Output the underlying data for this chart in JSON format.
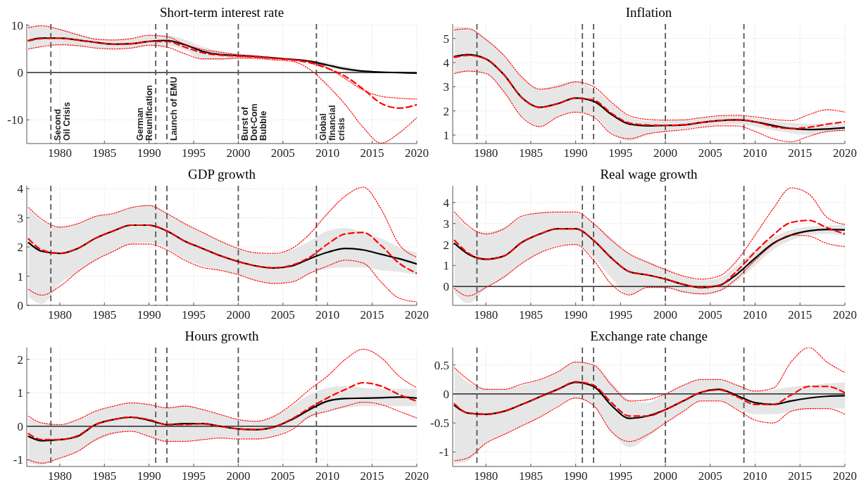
{
  "chart_data": [
    {
      "type": "line",
      "title": "Short-term interest rate",
      "x": [
        1976.5,
        1978,
        1980,
        1982,
        1984,
        1986,
        1988,
        1990,
        1992,
        1994,
        1996,
        1998,
        2000,
        2002,
        2004,
        2006,
        2008,
        2010,
        2012,
        2014,
        2016,
        2018,
        2020
      ],
      "xlim": [
        1976.3,
        2020
      ],
      "xticks": [
        1980,
        1985,
        1990,
        1995,
        2000,
        2005,
        2010,
        2015,
        2020
      ],
      "ylim": [
        -15,
        10.3
      ],
      "yticks": [
        -10,
        0,
        10
      ],
      "grid": true,
      "series": [
        {
          "color": "#000000",
          "line_style": "solid",
          "values": [
            6.8,
            7.3,
            7.3,
            6.9,
            6.4,
            6.0,
            6.1,
            6.6,
            6.8,
            5.9,
            4.5,
            3.8,
            3.6,
            3.4,
            3.1,
            2.8,
            2.4,
            1.6,
            0.8,
            0.3,
            0.1,
            0,
            -0.1
          ],
          "upper": [
            9.8,
            9.8,
            9.3,
            8.3,
            7.2,
            7.0,
            7.2,
            7.8,
            7.9,
            7.0,
            5.5,
            4.5,
            4.0,
            3.7,
            3.3,
            3.0,
            2.7,
            2.1,
            1.3,
            0.6,
            0.3,
            0.2,
            0.1
          ],
          "lower": [
            5.0,
            5.5,
            5.8,
            5.6,
            5.2,
            5.0,
            5.1,
            5.6,
            5.7,
            4.8,
            2.8,
            2.6,
            2.9,
            3.0,
            2.9,
            2.6,
            2.2,
            1.2,
            0.3,
            0,
            -0.1,
            -0.2,
            -0.3
          ]
        },
        {
          "color": "#ff0000",
          "line_style": "dashed",
          "values": [
            6.7,
            7.2,
            7.3,
            6.9,
            6.4,
            6.0,
            6.1,
            6.6,
            6.6,
            5.4,
            4.2,
            3.7,
            3.5,
            3.3,
            3.0,
            2.7,
            2.1,
            0.9,
            -0.8,
            -3.5,
            -6.5,
            -7.5,
            -6.8
          ]
        },
        {
          "color": "#ff0000",
          "line_style": "dotted",
          "values": [
            9.5,
            9.9,
            9.1,
            8.0,
            7.1,
            6.9,
            7.2,
            7.9,
            7.6,
            6.0,
            4.9,
            4.3,
            3.8,
            3.5,
            3.1,
            2.8,
            2.3,
            1.0,
            -1.3,
            -3.7,
            -5.0,
            -5.4,
            -5.6
          ]
        },
        {
          "color": "#ff0000",
          "line_style": "dotted",
          "values": [
            5.0,
            5.5,
            5.9,
            5.7,
            5.2,
            5.0,
            5.2,
            5.8,
            5.4,
            4.0,
            2.9,
            2.9,
            3.1,
            3.0,
            2.7,
            2.4,
            0.7,
            -2.7,
            -6.8,
            -11.6,
            -14.9,
            -12.8,
            -9.5
          ]
        }
      ],
      "ref_lines": [
        {
          "axis": "y",
          "value": 0,
          "color": "#000000",
          "line_style": "solid"
        },
        {
          "axis": "x",
          "value": 1979,
          "label": "Second\nOil Crisis",
          "color": "#555555",
          "line_style": "dashed"
        },
        {
          "axis": "x",
          "value": 1990.75,
          "label": "German\nReunification",
          "color": "#555555",
          "line_style": "dashed"
        },
        {
          "axis": "x",
          "value": 1992,
          "label": "Launch of EMU",
          "color": "#555555",
          "line_style": "dashed"
        },
        {
          "axis": "x",
          "value": 2000,
          "label": "Burst of\nDot-Com\nBubble",
          "color": "#555555",
          "line_style": "dashed"
        },
        {
          "axis": "x",
          "value": 2008.75,
          "label": "Global\nfinancial\ncrisis",
          "color": "#555555",
          "line_style": "dashed"
        }
      ]
    },
    {
      "type": "line",
      "title": "Inflation",
      "x": [
        1976.5,
        1978,
        1980,
        1982,
        1984,
        1986,
        1988,
        1990,
        1992,
        1994,
        1996,
        1998,
        2000,
        2002,
        2004,
        2006,
        2008,
        2010,
        2012,
        2014,
        2016,
        2018,
        2020
      ],
      "xlim": [
        1976.3,
        2020
      ],
      "xticks": [
        1980,
        1985,
        1990,
        1995,
        2000,
        2005,
        2010,
        2015,
        2020
      ],
      "ylim": [
        0.65,
        5.6
      ],
      "yticks": [
        1,
        2,
        3,
        4,
        5
      ],
      "grid": true,
      "series": [
        {
          "color": "#000000",
          "line_style": "solid",
          "values": [
            4.25,
            4.33,
            4.15,
            3.5,
            2.55,
            2.15,
            2.3,
            2.53,
            2.4,
            1.85,
            1.45,
            1.38,
            1.4,
            1.42,
            1.52,
            1.6,
            1.63,
            1.55,
            1.4,
            1.27,
            1.23,
            1.25,
            1.3
          ],
          "upper": [
            5.5,
            5.45,
            5.0,
            4.3,
            3.4,
            2.9,
            3.1,
            3.25,
            2.9,
            2.3,
            1.75,
            1.6,
            1.6,
            1.62,
            1.7,
            1.78,
            1.8,
            1.7,
            1.6,
            1.5,
            1.47,
            1.47,
            1.45
          ],
          "lower": [
            3.5,
            3.6,
            3.55,
            2.8,
            1.8,
            1.35,
            1.75,
            1.95,
            1.8,
            1.1,
            0.75,
            1.0,
            1.15,
            1.25,
            1.35,
            1.42,
            1.45,
            1.35,
            1.2,
            1.08,
            1.02,
            1.1,
            1.15
          ]
        },
        {
          "color": "#ff0000",
          "line_style": "dashed",
          "values": [
            4.22,
            4.3,
            4.15,
            3.5,
            2.55,
            2.15,
            2.3,
            2.53,
            2.45,
            1.9,
            1.5,
            1.42,
            1.4,
            1.42,
            1.52,
            1.6,
            1.63,
            1.55,
            1.35,
            1.27,
            1.32,
            1.45,
            1.55
          ]
        },
        {
          "color": "#ff0000",
          "line_style": "dotted",
          "values": [
            5.35,
            5.4,
            4.95,
            4.3,
            3.4,
            2.9,
            3.0,
            3.2,
            3.0,
            2.35,
            1.8,
            1.65,
            1.62,
            1.63,
            1.72,
            1.8,
            1.82,
            1.75,
            1.65,
            1.6,
            1.85,
            2.05,
            1.95
          ]
        },
        {
          "color": "#ff0000",
          "line_style": "dotted",
          "values": [
            3.55,
            3.65,
            3.55,
            2.8,
            1.75,
            1.35,
            1.75,
            1.95,
            1.75,
            1.05,
            0.85,
            1.05,
            1.15,
            1.22,
            1.32,
            1.38,
            1.38,
            1.15,
            0.85,
            0.72,
            0.95,
            1.15,
            1.2
          ]
        }
      ],
      "ref_lines": [
        {
          "axis": "x",
          "value": 1979,
          "color": "#555555",
          "line_style": "dashed"
        },
        {
          "axis": "x",
          "value": 1990.75,
          "color": "#555555",
          "line_style": "dashed"
        },
        {
          "axis": "x",
          "value": 1992,
          "color": "#555555",
          "line_style": "dashed"
        },
        {
          "axis": "x",
          "value": 2000,
          "color": "#555555",
          "line_style": "dashed"
        },
        {
          "axis": "x",
          "value": 2008.75,
          "color": "#555555",
          "line_style": "dashed"
        }
      ]
    },
    {
      "type": "line",
      "title": "GDP growth",
      "x": [
        1976.5,
        1978,
        1980,
        1982,
        1984,
        1986,
        1988,
        1990,
        1992,
        1994,
        1996,
        1998,
        2000,
        2002,
        2004,
        2006,
        2008,
        2010,
        2012,
        2014,
        2016,
        2018,
        2020
      ],
      "xlim": [
        1976.3,
        2020
      ],
      "xticks": [
        1980,
        1985,
        1990,
        1995,
        2000,
        2005,
        2010,
        2015,
        2020
      ],
      "ylim": [
        0,
        4.1
      ],
      "yticks": [
        0,
        1,
        2,
        3,
        4
      ],
      "grid": true,
      "series": [
        {
          "color": "#000000",
          "line_style": "solid",
          "values": [
            2.15,
            1.85,
            1.78,
            1.95,
            2.3,
            2.55,
            2.75,
            2.75,
            2.55,
            2.2,
            1.95,
            1.7,
            1.5,
            1.35,
            1.28,
            1.35,
            1.6,
            1.82,
            1.95,
            1.9,
            1.75,
            1.6,
            1.42
          ],
          "upper": [
            3.3,
            2.9,
            2.7,
            2.8,
            3.05,
            3.15,
            3.35,
            3.45,
            3.15,
            2.8,
            2.5,
            2.2,
            1.95,
            1.8,
            1.75,
            1.9,
            2.2,
            2.55,
            2.65,
            2.5,
            2.3,
            2.0,
            1.8
          ],
          "lower": [
            0.3,
            0.05,
            0.75,
            1.15,
            1.55,
            1.85,
            2.1,
            2.15,
            1.95,
            1.6,
            1.35,
            1.2,
            1.05,
            0.85,
            0.75,
            0.8,
            1.1,
            1.25,
            1.3,
            1.3,
            1.2,
            1.15,
            1.05
          ]
        },
        {
          "color": "#ff0000",
          "line_style": "dashed",
          "values": [
            2.28,
            1.9,
            1.78,
            1.95,
            2.3,
            2.55,
            2.75,
            2.75,
            2.55,
            2.2,
            1.95,
            1.7,
            1.5,
            1.35,
            1.28,
            1.38,
            1.65,
            2.1,
            2.45,
            2.5,
            2.05,
            1.45,
            1.1
          ]
        },
        {
          "color": "#ff0000",
          "line_style": "dotted",
          "values": [
            3.35,
            2.95,
            2.68,
            2.8,
            3.05,
            3.15,
            3.35,
            3.42,
            3.15,
            2.8,
            2.5,
            2.2,
            1.95,
            1.8,
            1.78,
            1.95,
            2.45,
            3.15,
            3.75,
            4.05,
            3.3,
            2.1,
            1.65
          ]
        },
        {
          "color": "#ff0000",
          "line_style": "dotted",
          "values": [
            0.55,
            0.35,
            0.65,
            1.15,
            1.55,
            1.85,
            2.1,
            2.1,
            1.9,
            1.55,
            1.3,
            1.2,
            1.05,
            0.85,
            0.75,
            0.8,
            1.1,
            1.35,
            1.55,
            1.45,
            0.8,
            0.25,
            0.12
          ]
        }
      ],
      "ref_lines": [
        {
          "axis": "x",
          "value": 1979,
          "color": "#555555",
          "line_style": "dashed"
        },
        {
          "axis": "x",
          "value": 1990.75,
          "color": "#555555",
          "line_style": "dashed"
        },
        {
          "axis": "x",
          "value": 1992,
          "color": "#555555",
          "line_style": "dashed"
        },
        {
          "axis": "x",
          "value": 2000,
          "color": "#555555",
          "line_style": "dashed"
        },
        {
          "axis": "x",
          "value": 2008.75,
          "color": "#555555",
          "line_style": "dashed"
        }
      ]
    },
    {
      "type": "line",
      "title": "Real wage growth",
      "x": [
        1976.5,
        1978,
        1980,
        1982,
        1984,
        1986,
        1988,
        1990,
        1992,
        1994,
        1996,
        1998,
        2000,
        2002,
        2004,
        2006,
        2008,
        2010,
        2012,
        2014,
        2016,
        2018,
        2020
      ],
      "xlim": [
        1976.3,
        2020
      ],
      "xticks": [
        1980,
        1985,
        1990,
        1995,
        2000,
        2005,
        2010,
        2015,
        2020
      ],
      "ylim": [
        -0.9,
        4.8
      ],
      "yticks": [
        0,
        1,
        2,
        3,
        4
      ],
      "grid": true,
      "series": [
        {
          "color": "#000000",
          "line_style": "solid",
          "values": [
            2.05,
            1.55,
            1.3,
            1.45,
            2.1,
            2.5,
            2.75,
            2.75,
            2.2,
            1.35,
            0.7,
            0.55,
            0.35,
            0.1,
            -0.05,
            0.05,
            0.6,
            1.35,
            2.05,
            2.45,
            2.65,
            2.72,
            2.7
          ],
          "upper": [
            3.5,
            2.8,
            2.6,
            2.8,
            3.3,
            3.55,
            3.55,
            3.5,
            3.0,
            2.3,
            1.55,
            1.2,
            0.85,
            0.5,
            0.3,
            0.4,
            1.0,
            1.75,
            2.35,
            2.7,
            2.85,
            2.9,
            2.95
          ],
          "lower": [
            -0.3,
            -0.8,
            -0.1,
            0.4,
            1.1,
            1.6,
            1.95,
            2.0,
            1.4,
            0.4,
            -0.4,
            -0.05,
            -0.05,
            -0.3,
            -0.4,
            -0.25,
            0.25,
            1.0,
            1.75,
            2.2,
            2.45,
            2.5,
            2.4
          ]
        },
        {
          "color": "#ff0000",
          "line_style": "dashed",
          "values": [
            2.2,
            1.6,
            1.3,
            1.45,
            2.1,
            2.5,
            2.75,
            2.75,
            2.2,
            1.35,
            0.7,
            0.55,
            0.35,
            0.1,
            -0.05,
            0.05,
            0.75,
            1.65,
            2.45,
            3.05,
            3.15,
            2.8,
            2.5
          ]
        },
        {
          "color": "#ff0000",
          "line_style": "dotted",
          "values": [
            3.55,
            2.9,
            2.5,
            2.75,
            3.35,
            3.5,
            3.55,
            3.55,
            3.0,
            2.2,
            1.55,
            1.15,
            0.8,
            0.5,
            0.35,
            0.5,
            1.25,
            2.45,
            3.7,
            4.7,
            4.4,
            3.3,
            2.95
          ]
        },
        {
          "color": "#ff0000",
          "line_style": "dotted",
          "values": [
            -0.1,
            -0.45,
            -0.05,
            0.45,
            1.1,
            1.6,
            1.9,
            2.0,
            1.25,
            0.1,
            -0.4,
            -0.05,
            -0.05,
            -0.25,
            -0.35,
            -0.2,
            0.4,
            1.25,
            2.0,
            2.45,
            2.4,
            2.05,
            1.9
          ]
        }
      ],
      "ref_lines": [
        {
          "axis": "y",
          "value": 0,
          "color": "#000000",
          "line_style": "solid"
        },
        {
          "axis": "x",
          "value": 1979,
          "color": "#555555",
          "line_style": "dashed"
        },
        {
          "axis": "x",
          "value": 1990.75,
          "color": "#555555",
          "line_style": "dashed"
        },
        {
          "axis": "x",
          "value": 1992,
          "color": "#555555",
          "line_style": "dashed"
        },
        {
          "axis": "x",
          "value": 2000,
          "color": "#555555",
          "line_style": "dashed"
        },
        {
          "axis": "x",
          "value": 2008.75,
          "color": "#555555",
          "line_style": "dashed"
        }
      ]
    },
    {
      "type": "line",
      "title": "Hours growth",
      "x": [
        1976.5,
        1978,
        1980,
        1982,
        1984,
        1986,
        1988,
        1990,
        1992,
        1994,
        1996,
        1998,
        2000,
        2002,
        2004,
        2006,
        2008,
        2010,
        2012,
        2014,
        2016,
        2018,
        2020
      ],
      "xlim": [
        1976.3,
        2020
      ],
      "xticks": [
        1980,
        1985,
        1990,
        1995,
        2000,
        2005,
        2010,
        2015,
        2020
      ],
      "ylim": [
        -1.2,
        2.35
      ],
      "yticks": [
        -1,
        0,
        1,
        2
      ],
      "grid": true,
      "series": [
        {
          "color": "#000000",
          "line_style": "solid",
          "values": [
            -0.3,
            -0.43,
            -0.4,
            -0.3,
            0.05,
            0.2,
            0.27,
            0.18,
            0.05,
            0.08,
            0.08,
            0,
            -0.08,
            -0.1,
            -0.02,
            0.2,
            0.5,
            0.75,
            0.83,
            0.84,
            0.85,
            0.87,
            0.84
          ],
          "upper": [
            0.25,
            0.1,
            0.05,
            0.2,
            0.45,
            0.6,
            0.7,
            0.65,
            0.55,
            0.65,
            0.5,
            0.35,
            0.2,
            0.15,
            0.3,
            0.6,
            0.95,
            1.15,
            1.2,
            1.15,
            1.12,
            1.12,
            1.12
          ],
          "lower": [
            -1.1,
            -1.15,
            -0.95,
            -0.75,
            -0.45,
            -0.25,
            -0.15,
            -0.3,
            -0.45,
            -0.45,
            -0.4,
            -0.35,
            -0.35,
            -0.38,
            -0.3,
            -0.05,
            0.25,
            0.45,
            0.55,
            0.6,
            0.6,
            0.6,
            0.6
          ]
        },
        {
          "color": "#ff0000",
          "line_style": "dashed",
          "values": [
            -0.22,
            -0.4,
            -0.4,
            -0.28,
            0.05,
            0.2,
            0.27,
            0.2,
            0.05,
            0.05,
            0.08,
            0,
            -0.08,
            -0.1,
            -0.02,
            0.22,
            0.55,
            0.85,
            1.1,
            1.3,
            1.2,
            0.95,
            0.75
          ]
        },
        {
          "color": "#ff0000",
          "line_style": "dotted",
          "values": [
            0.3,
            0.1,
            0.05,
            0.2,
            0.45,
            0.6,
            0.7,
            0.65,
            0.55,
            0.6,
            0.5,
            0.35,
            0.2,
            0.15,
            0.3,
            0.65,
            1.1,
            1.5,
            2.0,
            2.3,
            2.05,
            1.5,
            1.15
          ]
        },
        {
          "color": "#ff0000",
          "line_style": "dotted",
          "values": [
            -1.0,
            -1.1,
            -0.95,
            -0.75,
            -0.4,
            -0.2,
            -0.15,
            -0.3,
            -0.45,
            -0.45,
            -0.4,
            -0.35,
            -0.38,
            -0.38,
            -0.3,
            -0.1,
            0.3,
            0.45,
            0.6,
            0.72,
            0.65,
            0.45,
            0.25
          ]
        }
      ],
      "ref_lines": [
        {
          "axis": "y",
          "value": 0,
          "color": "#000000",
          "line_style": "solid"
        },
        {
          "axis": "x",
          "value": 1979,
          "color": "#555555",
          "line_style": "dashed"
        },
        {
          "axis": "x",
          "value": 1990.75,
          "color": "#555555",
          "line_style": "dashed"
        },
        {
          "axis": "x",
          "value": 1992,
          "color": "#555555",
          "line_style": "dashed"
        },
        {
          "axis": "x",
          "value": 2000,
          "color": "#555555",
          "line_style": "dashed"
        },
        {
          "axis": "x",
          "value": 2008.75,
          "color": "#555555",
          "line_style": "dashed"
        }
      ]
    },
    {
      "type": "line",
      "title": "Exchange rate change",
      "x": [
        1976.5,
        1978,
        1980,
        1982,
        1984,
        1986,
        1988,
        1990,
        1992,
        1994,
        1996,
        1998,
        2000,
        2002,
        2004,
        2006,
        2008,
        2010,
        2012,
        2014,
        2016,
        2018,
        2020
      ],
      "xlim": [
        1976.3,
        2020
      ],
      "xticks": [
        1980,
        1985,
        1990,
        1995,
        2000,
        2005,
        2010,
        2015,
        2020
      ],
      "ylim": [
        -1.25,
        0.8
      ],
      "yticks": [
        -1,
        -0.5,
        0,
        0.5
      ],
      "grid": true,
      "series": [
        {
          "color": "#000000",
          "line_style": "solid",
          "values": [
            -0.2,
            -0.33,
            -0.35,
            -0.3,
            -0.18,
            -0.05,
            0.08,
            0.2,
            0.13,
            -0.2,
            -0.42,
            -0.38,
            -0.27,
            -0.12,
            0.03,
            0.08,
            -0.03,
            -0.15,
            -0.18,
            -0.12,
            -0.07,
            -0.04,
            -0.03
          ],
          "upper": [
            0.45,
            0.2,
            0.1,
            0.08,
            0.15,
            0.25,
            0.38,
            0.55,
            0.5,
            0.2,
            -0.1,
            -0.15,
            0.0,
            0.15,
            0.25,
            0.25,
            0.15,
            0.05,
            0.07,
            0.12,
            0.15,
            0.18,
            0.2
          ],
          "lower": [
            -1.2,
            -1.15,
            -0.85,
            -0.7,
            -0.55,
            -0.4,
            -0.2,
            -0.08,
            -0.2,
            -0.65,
            -0.92,
            -0.75,
            -0.5,
            -0.3,
            -0.12,
            -0.12,
            -0.25,
            -0.35,
            -0.35,
            -0.3,
            -0.27,
            -0.25,
            -0.25
          ]
        },
        {
          "color": "#ff0000",
          "line_style": "dashed",
          "values": [
            -0.17,
            -0.33,
            -0.35,
            -0.3,
            -0.18,
            -0.05,
            0.08,
            0.21,
            0.15,
            -0.15,
            -0.38,
            -0.38,
            -0.27,
            -0.12,
            0.03,
            0.07,
            -0.05,
            -0.18,
            -0.18,
            -0.02,
            0.13,
            0.13,
            0.02
          ]
        },
        {
          "color": "#ff0000",
          "line_style": "dotted",
          "values": [
            0.45,
            0.25,
            0.08,
            0.08,
            0.17,
            0.25,
            0.38,
            0.55,
            0.5,
            0.15,
            -0.12,
            -0.1,
            0.0,
            0.15,
            0.25,
            0.25,
            0.15,
            0.05,
            0.1,
            0.55,
            0.8,
            0.55,
            0.37
          ]
        },
        {
          "color": "#ff0000",
          "line_style": "dotted",
          "values": [
            -1.15,
            -1.1,
            -0.85,
            -0.7,
            -0.55,
            -0.4,
            -0.22,
            -0.07,
            -0.2,
            -0.65,
            -0.82,
            -0.7,
            -0.5,
            -0.3,
            -0.12,
            -0.12,
            -0.27,
            -0.45,
            -0.5,
            -0.3,
            -0.25,
            -0.25,
            -0.35
          ]
        }
      ],
      "ref_lines": [
        {
          "axis": "y",
          "value": 0,
          "color": "#000000",
          "line_style": "solid"
        },
        {
          "axis": "x",
          "value": 1979,
          "color": "#555555",
          "line_style": "dashed"
        },
        {
          "axis": "x",
          "value": 1990.75,
          "color": "#555555",
          "line_style": "dashed"
        },
        {
          "axis": "x",
          "value": 1992,
          "color": "#555555",
          "line_style": "dashed"
        },
        {
          "axis": "x",
          "value": 2000,
          "color": "#555555",
          "line_style": "dashed"
        },
        {
          "axis": "x",
          "value": 2008.75,
          "color": "#555555",
          "line_style": "dashed"
        }
      ]
    }
  ]
}
